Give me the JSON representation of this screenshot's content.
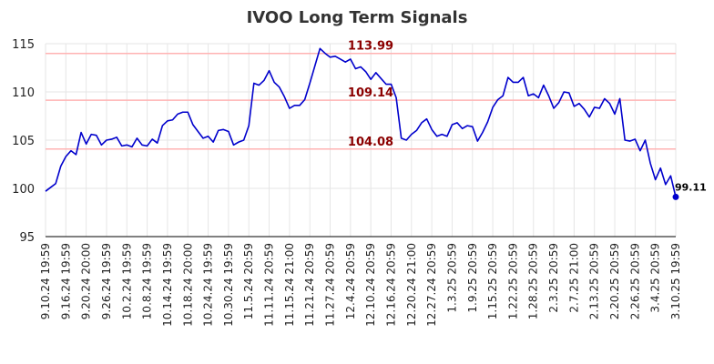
{
  "chart_data": {
    "type": "line",
    "title": "IVOO Long Term Signals",
    "xlabel": "",
    "ylabel": "",
    "ylim": [
      95,
      115
    ],
    "yticks": [
      95,
      100,
      105,
      110,
      115
    ],
    "grid": true,
    "legend": "none",
    "colors": {
      "line": "#0000cc",
      "hline": "#ffb3b3",
      "annotation": "#8b0000"
    },
    "x_tick_labels": [
      "9.10.24 19:59",
      "9.16.24 19:59",
      "9.20.24 20:00",
      "9.26.24 19:59",
      "10.2.24 19:59",
      "10.8.24 19:59",
      "10.14.24 19:59",
      "10.18.24 20:00",
      "10.24.24 19:59",
      "10.30.24 19:59",
      "11.5.24 20:59",
      "11.11.24 20:59",
      "11.15.24 21:00",
      "11.21.24 20:59",
      "11.27.24 20:59",
      "12.4.24 20:59",
      "12.10.24 20:59",
      "12.16.24 20:59",
      "12.20.24 21:00",
      "12.27.24 20:59",
      "1.3.25 20:59",
      "1.9.25 20:59",
      "1.15.25 20:59",
      "1.22.25 20:59",
      "1.28.25 20:59",
      "2.3.25 20:59",
      "2.7.25 21:00",
      "2.13.25 20:59",
      "2.20.25 20:59",
      "2.26.25 20:59",
      "3.4.25 20:59",
      "3.10.25 19:59"
    ],
    "horizontal_lines": [
      {
        "value": 113.99,
        "label": "113.99"
      },
      {
        "value": 109.14,
        "label": "109.14"
      },
      {
        "value": 104.08,
        "label": "104.08"
      }
    ],
    "last_point": {
      "value": 99.11,
      "label": "99.11"
    },
    "series": [
      {
        "values": [
          99.7,
          100.1,
          100.5,
          102.3,
          103.3,
          103.9,
          103.5,
          105.8,
          104.6,
          105.6,
          105.5,
          104.5,
          105.0,
          105.1,
          105.3,
          104.4,
          104.5,
          104.3,
          105.2,
          104.5,
          104.4,
          105.1,
          104.7,
          106.5,
          107.0,
          107.1,
          107.7,
          107.9,
          107.9,
          106.6,
          105.9,
          105.2,
          105.4,
          104.8,
          106.0,
          106.1,
          105.9,
          104.5,
          104.8,
          105.0,
          106.5,
          110.9,
          110.7,
          111.2,
          112.2,
          111.0,
          110.5,
          109.5,
          108.3,
          108.6,
          108.6,
          109.2,
          110.9,
          112.7,
          114.5,
          114.0,
          113.6,
          113.7,
          113.4,
          113.1,
          113.4,
          112.4,
          112.6,
          112.1,
          111.3,
          112.0,
          111.4,
          110.8,
          110.8,
          109.4,
          105.2,
          105.0,
          105.6,
          106.0,
          106.8,
          107.2,
          106.1,
          105.4,
          105.6,
          105.4,
          106.6,
          106.8,
          106.2,
          106.5,
          106.4,
          104.9,
          105.8,
          106.9,
          108.4,
          109.2,
          109.6,
          111.5,
          111.0,
          111.0,
          111.5,
          109.6,
          109.8,
          109.4,
          110.7,
          109.6,
          108.3,
          108.9,
          110.0,
          109.9,
          108.5,
          108.8,
          108.2,
          107.4,
          108.4,
          108.3,
          109.3,
          108.8,
          107.7,
          109.3,
          105.0,
          104.9,
          105.1,
          103.9,
          105.0,
          102.6,
          100.9,
          102.1,
          100.4,
          101.3,
          99.11
        ]
      }
    ]
  }
}
